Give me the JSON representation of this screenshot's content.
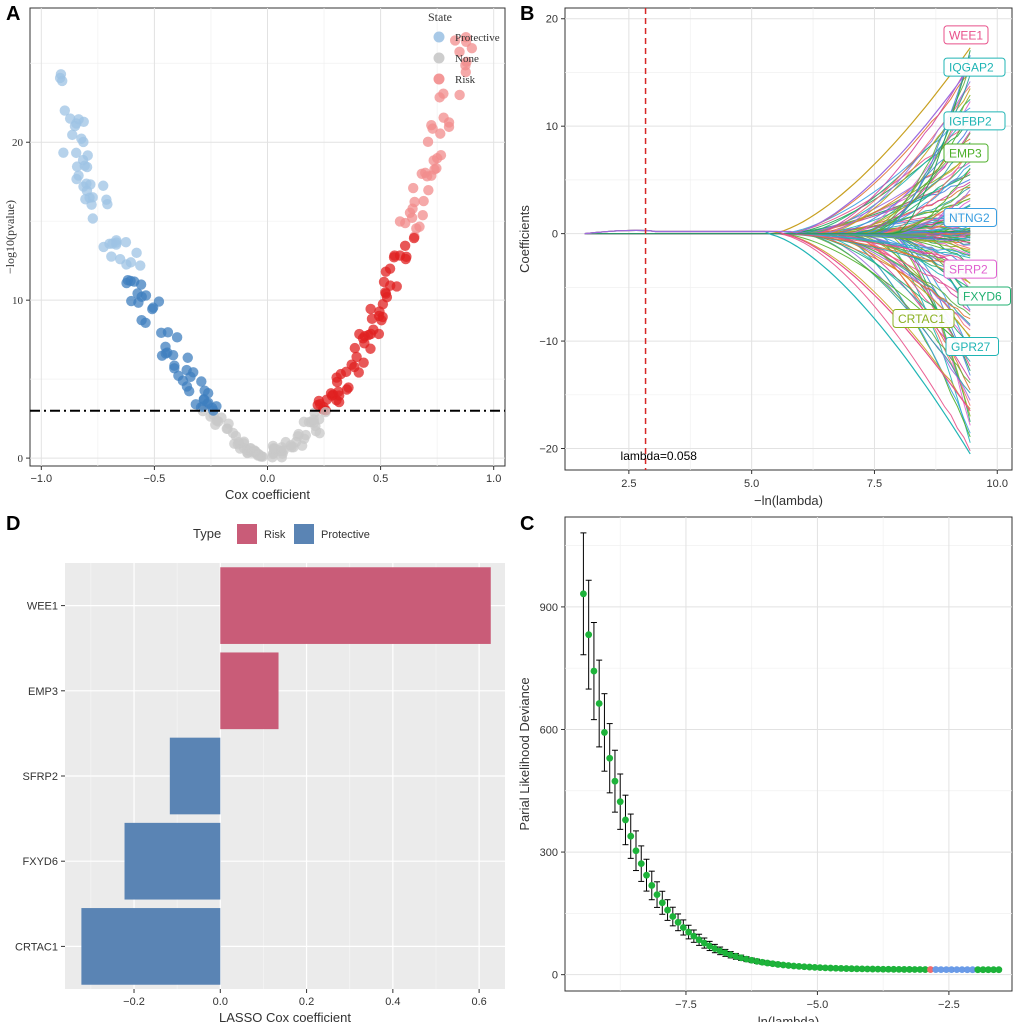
{
  "panels": {
    "A": "A",
    "B": "B",
    "C": "C",
    "D": "D"
  },
  "colors": {
    "protective_light": "#9EC3E4",
    "protective": "#3F7FBF",
    "none": "#C8C8C8",
    "risk_light": "#F28C8C",
    "risk": "#E02020",
    "bar_risk": "#C95C78",
    "bar_protective": "#5A84B4",
    "green_point": "#1DB33A",
    "red_point": "#F26B6B",
    "blue_point": "#6A9BE8",
    "lambda_line": "#D62828"
  },
  "chart_data": [
    {
      "id": "A",
      "type": "scatter",
      "title": "",
      "xlabel": "Cox coefficient",
      "ylabel": "−log10(pvalue)",
      "xlim": [
        -1.05,
        1.05
      ],
      "ylim": [
        -0.5,
        28.5
      ],
      "x_ticks": [
        -1.0,
        -0.5,
        0.0,
        0.5,
        1.0
      ],
      "x_tick_labels": [
        "−1.0",
        "−0.5",
        "0.0",
        "0.5",
        "1.0"
      ],
      "y_ticks": [
        0,
        10,
        20
      ],
      "y_tick_labels": [
        "0",
        "10",
        "20"
      ],
      "threshold_y": 3,
      "legend_title": "State",
      "legend": [
        "Protective",
        "None",
        "Risk"
      ],
      "n_points_per_side": 130
    },
    {
      "id": "B",
      "type": "line",
      "xlabel": "−ln(lambda)",
      "ylabel": "Coefficients",
      "xlim": [
        1.2,
        10.3
      ],
      "ylim": [
        -22,
        21
      ],
      "x_ticks": [
        2.5,
        5.0,
        7.5,
        10.0
      ],
      "x_tick_labels": [
        "2.5",
        "5.0",
        "7.5",
        "10.0"
      ],
      "y_ticks": [
        -20,
        -10,
        0,
        10,
        20
      ],
      "y_tick_labels": [
        "−20",
        "−10",
        "0",
        "10",
        "20"
      ],
      "lambda_x": 2.84,
      "lambda_label": "lambda=0.058",
      "series_end_min": -20.5,
      "series_end_max": 17.3,
      "gene_labels": [
        {
          "name": "WEE1",
          "y": 18.5,
          "color": "#E8508A"
        },
        {
          "name": "IQGAP2",
          "y": 15.5,
          "color": "#20B5B5"
        },
        {
          "name": "IGFBP2",
          "y": 10.5,
          "color": "#20B5B5"
        },
        {
          "name": "EMP3",
          "y": 7.5,
          "color": "#4CAF28"
        },
        {
          "name": "NTNG2",
          "y": 1.5,
          "color": "#3A9EE0"
        },
        {
          "name": "SFRP2",
          "y": -3.3,
          "color": "#E060D0"
        },
        {
          "name": "FXYD6",
          "y": -5.8,
          "color": "#20B070"
        },
        {
          "name": "CRTAC1",
          "y": -7.9,
          "color": "#8AB020"
        },
        {
          "name": "GPR27",
          "y": -10.5,
          "color": "#20B5B5"
        }
      ]
    },
    {
      "id": "C",
      "type": "scatter",
      "xlabel": "ln(lambda)",
      "ylabel": "Parial Likelihood Deviance",
      "xlim": [
        -9.8,
        -1.3
      ],
      "ylim": [
        -40,
        1120
      ],
      "x_ticks": [
        -7.5,
        -5.0,
        -2.5
      ],
      "x_tick_labels": [
        "−7.5",
        "−5.0",
        "−2.5"
      ],
      "y_ticks": [
        0,
        300,
        600,
        900
      ],
      "y_tick_labels": [
        "0",
        "300",
        "600",
        "900"
      ],
      "x_start": -9.45,
      "x_end": -1.55,
      "n_points": 80,
      "y_max": 932,
      "y_min": 12,
      "decay_rate": 1.15,
      "error_bar_frac": 0.16,
      "error_bar_floor": 3
    },
    {
      "id": "D",
      "type": "bar",
      "orientation": "horizontal",
      "xlabel": "LASSO Cox coefficient",
      "ylabel": "",
      "xlim": [
        -0.36,
        0.66
      ],
      "x_ticks": [
        -0.2,
        0.0,
        0.2,
        0.4,
        0.6
      ],
      "x_tick_labels": [
        "−0.2",
        "0.0",
        "0.2",
        "0.4",
        "0.6"
      ],
      "legend_title": "Type",
      "legend": [
        "Risk",
        "Protective"
      ],
      "categories": [
        "WEE1",
        "EMP3",
        "SFRP2",
        "FXYD6",
        "CRTAC1"
      ],
      "values": [
        0.627,
        0.135,
        -0.117,
        -0.222,
        -0.322
      ],
      "types": [
        "Risk",
        "Risk",
        "Protective",
        "Protective",
        "Protective"
      ]
    }
  ]
}
